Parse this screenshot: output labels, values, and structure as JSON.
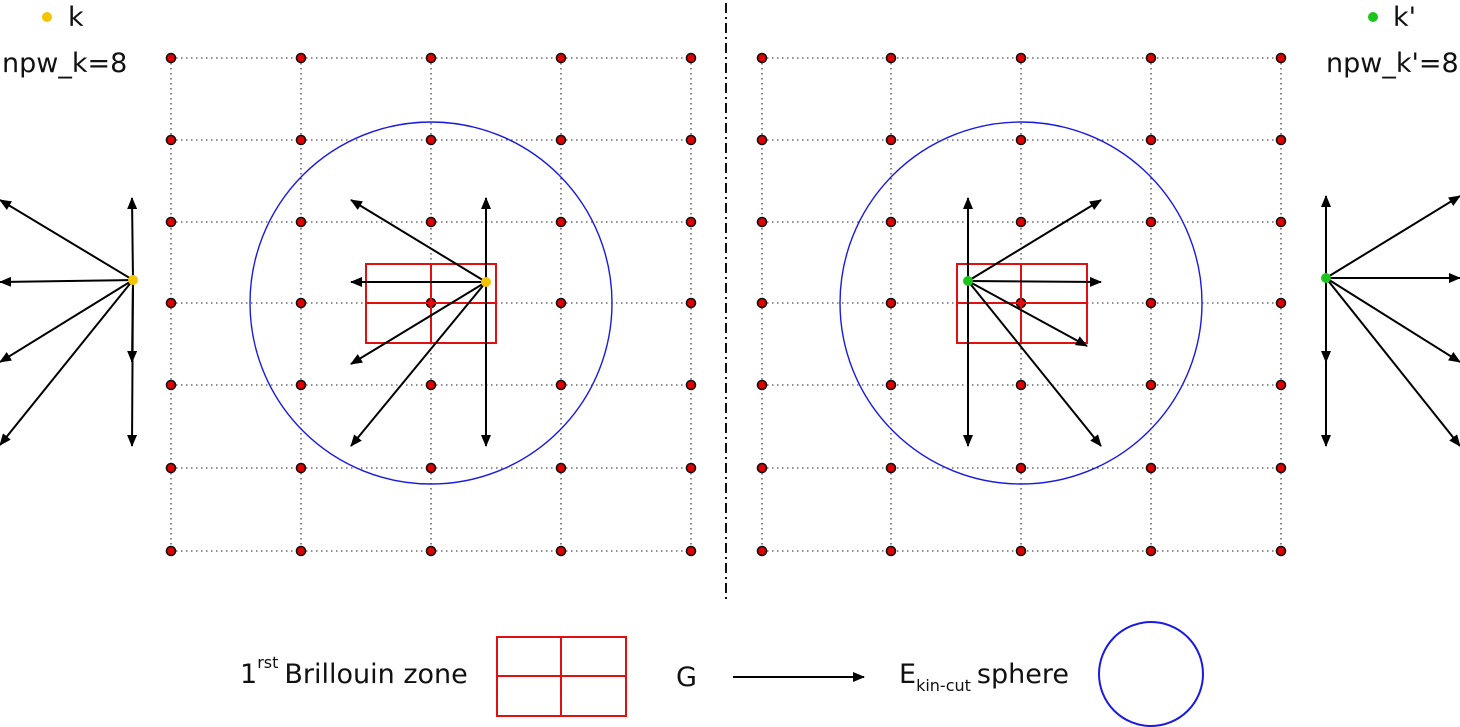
{
  "labels": {
    "k_left": "k",
    "npw_left": "npw_k=8",
    "k_right": "k'",
    "npw_right": "npw_k'=8",
    "legend_bz_sup": "rst",
    "legend_bz_prefix": "1",
    "legend_bz_text": "Brillouin zone",
    "legend_g": "G",
    "legend_sphere_base": "E",
    "legend_sphere_sub": "kin-cut",
    "legend_sphere_text": "sphere"
  },
  "colors": {
    "k_point": "#f5c400",
    "kprime_point": "#1ec41e",
    "lattice_node": "#e00000",
    "brillouin_zone": "#e01010",
    "cutoff_sphere": "#1a1ae0",
    "vector": "#000000"
  },
  "npw_k": 8,
  "npw_kprime": 8
}
